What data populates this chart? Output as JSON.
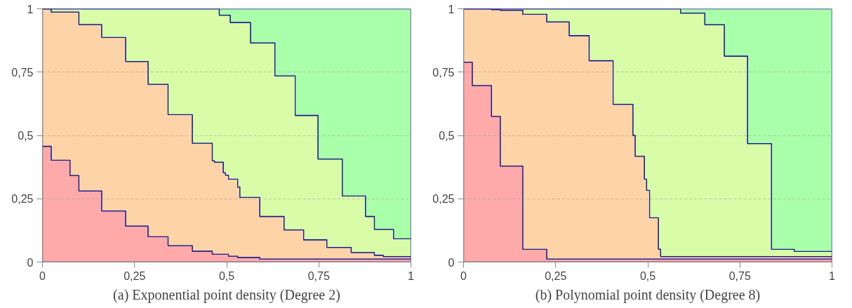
{
  "chart_data": [
    {
      "type": "area",
      "stacked": true,
      "title": "(a) Exponential point density (Degree 2)",
      "xlim": [
        0,
        1
      ],
      "ylim": [
        0,
        1
      ],
      "xticks": [
        {
          "value": 0,
          "label": "0"
        },
        {
          "value": 0.25,
          "label": "0,25"
        },
        {
          "value": 0.5,
          "label": "0,5"
        },
        {
          "value": 0.75,
          "label": "0,75"
        },
        {
          "value": 1,
          "label": "1"
        }
      ],
      "yticks": [
        {
          "value": 0,
          "label": "0"
        },
        {
          "value": 0.25,
          "label": "0,25"
        },
        {
          "value": 0.5,
          "label": "0,5"
        },
        {
          "value": 0.75,
          "label": "0,75"
        },
        {
          "value": 1,
          "label": "1"
        }
      ],
      "grid": "y",
      "x": [
        0,
        0.024,
        0.075,
        0.099,
        0.161,
        0.226,
        0.287,
        0.341,
        0.407,
        0.461,
        0.467,
        0.48,
        0.491,
        0.497,
        0.505,
        0.51,
        0.53,
        0.536,
        0.565,
        0.59,
        0.631,
        0.656,
        0.686,
        0.709,
        0.748,
        0.772,
        0.814,
        0.838,
        0.877,
        0.901,
        0.925,
        0.953,
        1
      ],
      "series": [
        {
          "color": "#ffaaaa",
          "values": [
            0.457,
            0.402,
            0.342,
            0.281,
            0.202,
            0.142,
            0.1,
            0.065,
            0.043,
            0.031,
            0.031,
            0.031,
            0.031,
            0.031,
            0.023,
            0.023,
            0.018,
            0.018,
            0.018,
            0.012,
            0.012,
            0.012,
            0.012,
            0.012,
            0.012,
            0.012,
            0.012,
            0.012,
            0.012,
            0.012,
            0.012,
            0.012,
            0.012
          ]
        },
        {
          "color": "#fdd3a8",
          "values": [
            0.543,
            0.585,
            0.645,
            0.657,
            0.685,
            0.65,
            0.602,
            0.517,
            0.426,
            0.369,
            0.363,
            0.363,
            0.322,
            0.312,
            0.304,
            0.304,
            0.278,
            0.237,
            0.237,
            0.168,
            0.168,
            0.115,
            0.115,
            0.076,
            0.076,
            0.046,
            0.046,
            0.026,
            0.026,
            0.015,
            0.01,
            0.01,
            0.01
          ]
        },
        {
          "color": "#d8fca8",
          "values": [
            0,
            0.013,
            0.013,
            0.062,
            0.113,
            0.208,
            0.298,
            0.418,
            0.531,
            0.6,
            0.606,
            0.581,
            0.622,
            0.632,
            0.648,
            0.619,
            0.65,
            0.691,
            0.61,
            0.685,
            0.555,
            0.608,
            0.452,
            0.491,
            0.319,
            0.349,
            0.203,
            0.223,
            0.142,
            0.102,
            0.107,
            0.07,
            0.07
          ]
        },
        {
          "color": "#aaffaa",
          "values": [
            0,
            0,
            0,
            0,
            0,
            0,
            0,
            0,
            0,
            0,
            0,
            0.025,
            0.025,
            0.025,
            0.025,
            0.054,
            0.054,
            0.054,
            0.135,
            0.135,
            0.265,
            0.265,
            0.421,
            0.421,
            0.593,
            0.593,
            0.739,
            0.739,
            0.82,
            0.871,
            0.871,
            0.908,
            0.908
          ]
        }
      ]
    },
    {
      "type": "area",
      "stacked": true,
      "title": "(b) Polynomial point density (Degree 8)",
      "xlim": [
        0,
        1
      ],
      "ylim": [
        0,
        1
      ],
      "xticks": [
        {
          "value": 0,
          "label": "0"
        },
        {
          "value": 0.25,
          "label": "0,25"
        },
        {
          "value": 0.5,
          "label": "0,5"
        },
        {
          "value": 0.75,
          "label": "0,75"
        },
        {
          "value": 1,
          "label": "1"
        }
      ],
      "yticks": [
        {
          "value": 0,
          "label": "0"
        },
        {
          "value": 0.25,
          "label": "0,25"
        },
        {
          "value": 0.5,
          "label": "0,5"
        },
        {
          "value": 0.75,
          "label": "0,75"
        },
        {
          "value": 1,
          "label": "1"
        }
      ],
      "grid": "y",
      "x": [
        0,
        0.024,
        0.076,
        0.1,
        0.161,
        0.226,
        0.287,
        0.341,
        0.406,
        0.46,
        0.466,
        0.491,
        0.497,
        0.505,
        0.529,
        0.535,
        0.589,
        0.655,
        0.708,
        0.771,
        0.836,
        0.898,
        1
      ],
      "series": [
        {
          "color": "#ffaaaa",
          "values": [
            0.789,
            0.697,
            0.575,
            0.379,
            0.05,
            0.012,
            0.012,
            0.012,
            0.012,
            0.012,
            0.012,
            0.012,
            0.012,
            0.012,
            0.012,
            0.012,
            0.012,
            0.012,
            0.012,
            0.012,
            0.012,
            0.012,
            0.012
          ]
        },
        {
          "color": "#fdd3a8",
          "values": [
            0.211,
            0.303,
            0.422,
            0.615,
            0.928,
            0.936,
            0.882,
            0.783,
            0.611,
            0.488,
            0.406,
            0.315,
            0.271,
            0.163,
            0.039,
            0.01,
            0.01,
            0.01,
            0.01,
            0.01,
            0.01,
            0.01,
            0.01
          ]
        },
        {
          "color": "#d8fca8",
          "values": [
            0,
            0,
            0.003,
            0.006,
            0.022,
            0.052,
            0.106,
            0.205,
            0.377,
            0.5,
            0.582,
            0.673,
            0.717,
            0.825,
            0.949,
            0.978,
            0.961,
            0.915,
            0.791,
            0.446,
            0.028,
            0.02,
            0.02
          ]
        },
        {
          "color": "#aaffaa",
          "values": [
            0,
            0,
            0,
            0,
            0,
            0,
            0,
            0,
            0,
            0,
            0,
            0,
            0,
            0,
            0,
            0,
            0.017,
            0.063,
            0.187,
            0.532,
            0.95,
            0.958,
            0.958
          ]
        }
      ]
    }
  ]
}
